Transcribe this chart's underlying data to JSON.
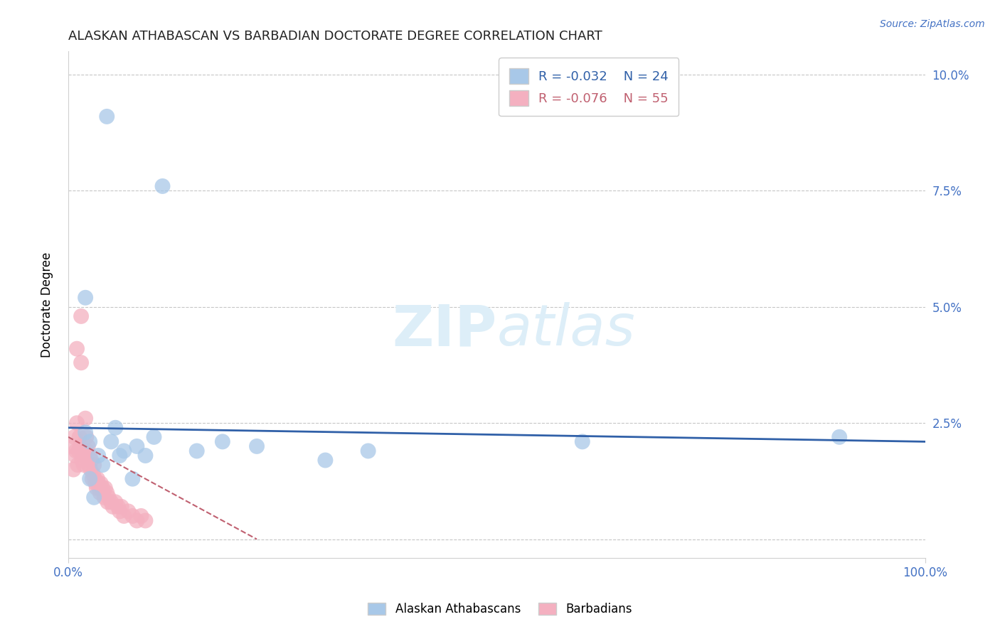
{
  "title": "ALASKAN ATHABASCAN VS BARBADIAN DOCTORATE DEGREE CORRELATION CHART",
  "source": "Source: ZipAtlas.com",
  "ylabel": "Doctorate Degree",
  "xlim": [
    0.0,
    1.0
  ],
  "ylim": [
    -0.004,
    0.105
  ],
  "yticks": [
    0.0,
    0.025,
    0.05,
    0.075,
    0.1
  ],
  "ytick_labels": [
    "",
    "2.5%",
    "5.0%",
    "7.5%",
    "10.0%"
  ],
  "xticks": [
    0.0,
    1.0
  ],
  "xtick_labels": [
    "0.0%",
    "100.0%"
  ],
  "legend_r_blue": "R = -0.032",
  "legend_n_blue": "N = 24",
  "legend_r_pink": "R = -0.076",
  "legend_n_pink": "N = 55",
  "legend_label_blue": "Alaskan Athabascans",
  "legend_label_pink": "Barbadians",
  "blue_color": "#a8c8e8",
  "pink_color": "#f4b0c0",
  "trend_blue_color": "#3060a8",
  "trend_pink_color": "#c06070",
  "watermark_color": "#ddeef8",
  "blue_x": [
    0.02,
    0.045,
    0.11,
    0.02,
    0.025,
    0.035,
    0.04,
    0.05,
    0.055,
    0.065,
    0.08,
    0.09,
    0.1,
    0.15,
    0.18,
    0.22,
    0.3,
    0.35,
    0.6,
    0.9,
    0.025,
    0.03,
    0.06,
    0.075
  ],
  "blue_y": [
    0.052,
    0.091,
    0.076,
    0.023,
    0.021,
    0.018,
    0.016,
    0.021,
    0.024,
    0.019,
    0.02,
    0.018,
    0.022,
    0.019,
    0.021,
    0.02,
    0.017,
    0.019,
    0.021,
    0.022,
    0.013,
    0.009,
    0.018,
    0.013
  ],
  "pink_x": [
    0.005,
    0.006,
    0.007,
    0.008,
    0.009,
    0.01,
    0.011,
    0.012,
    0.013,
    0.014,
    0.015,
    0.016,
    0.017,
    0.018,
    0.019,
    0.02,
    0.021,
    0.022,
    0.023,
    0.024,
    0.025,
    0.026,
    0.027,
    0.028,
    0.029,
    0.03,
    0.031,
    0.032,
    0.033,
    0.034,
    0.035,
    0.036,
    0.037,
    0.038,
    0.04,
    0.041,
    0.042,
    0.043,
    0.045,
    0.046,
    0.047,
    0.05,
    0.052,
    0.055,
    0.058,
    0.06,
    0.062,
    0.065,
    0.07,
    0.075,
    0.08,
    0.085,
    0.09,
    0.01,
    0.015
  ],
  "pink_y": [
    0.02,
    0.015,
    0.022,
    0.018,
    0.019,
    0.025,
    0.016,
    0.019,
    0.022,
    0.02,
    0.048,
    0.017,
    0.019,
    0.016,
    0.018,
    0.026,
    0.022,
    0.019,
    0.02,
    0.016,
    0.018,
    0.015,
    0.017,
    0.013,
    0.014,
    0.016,
    0.013,
    0.012,
    0.011,
    0.013,
    0.012,
    0.011,
    0.01,
    0.012,
    0.011,
    0.01,
    0.009,
    0.011,
    0.01,
    0.008,
    0.009,
    0.008,
    0.007,
    0.008,
    0.007,
    0.006,
    0.007,
    0.005,
    0.006,
    0.005,
    0.004,
    0.005,
    0.004,
    0.041,
    0.038
  ],
  "blue_trend_x": [
    0.0,
    1.0
  ],
  "blue_trend_y": [
    0.024,
    0.021
  ],
  "pink_trend_x": [
    0.0,
    0.22
  ],
  "pink_trend_y": [
    0.022,
    0.0
  ]
}
